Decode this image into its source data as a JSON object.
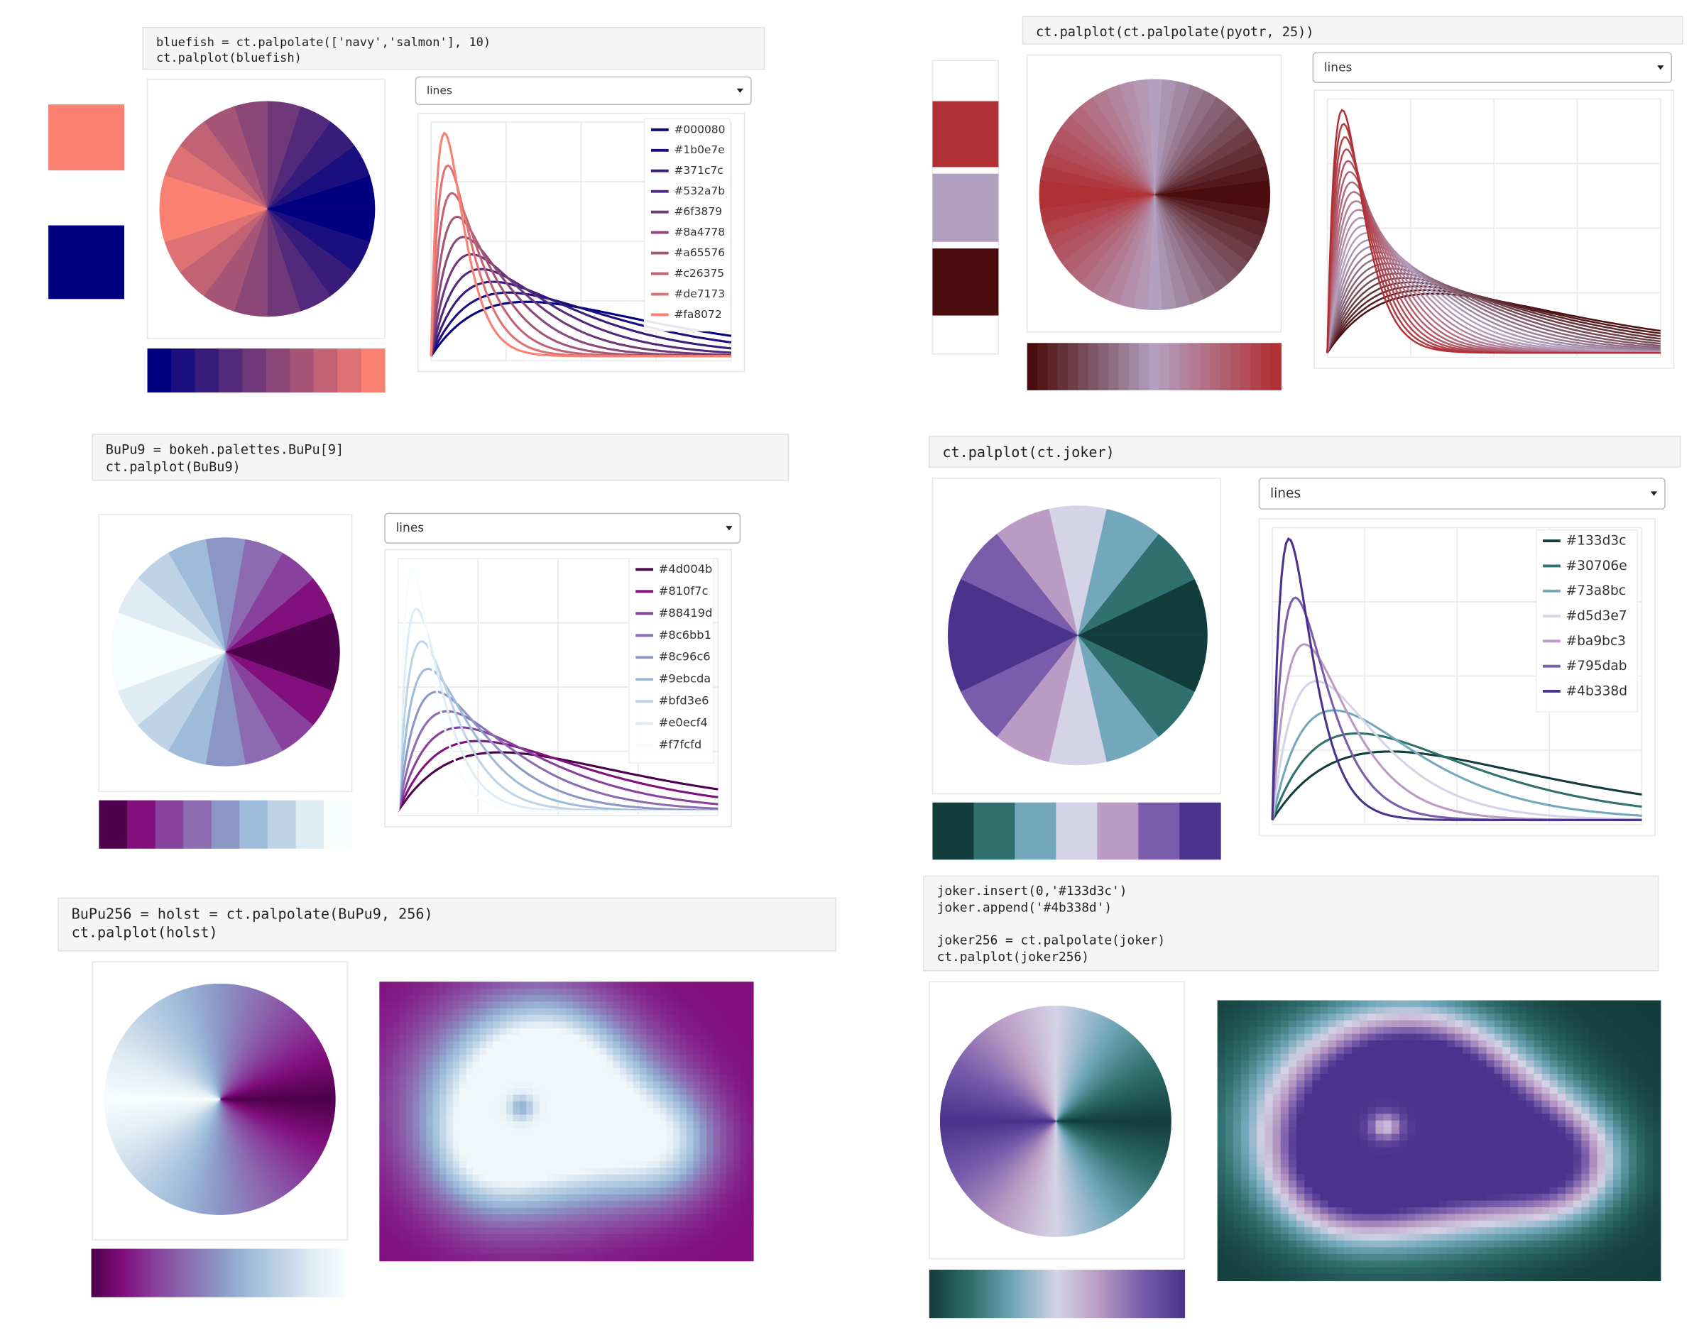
{
  "panels": [
    {
      "code": [
        [
          "bluefish = ct.palpolate(['navy','salmon'], 10)",
          "ct.palplot(bluefish)"
        ]
      ],
      "dropdown": "lines",
      "swatches": [
        "#fa8072",
        "#000080"
      ],
      "legend": [
        "#000080",
        "#1b0e7e",
        "#371c7c",
        "#532a7b",
        "#6f3879",
        "#8a4778",
        "#a65576",
        "#c26375",
        "#de7173",
        "#fa8072"
      ]
    },
    {
      "code": [
        [
          "ct.palplot(ct.palpolate(pyotr, 25))"
        ]
      ],
      "dropdown": "lines",
      "swatches": [
        "#b03035",
        "#b3a0c0",
        "#4a0c0c"
      ]
    },
    {
      "code": [
        [
          "BuPu9 = bokeh.palettes.BuPu[9]",
          "ct.palplot(BuBu9)"
        ]
      ],
      "dropdown": "lines",
      "legend": [
        "#4d004b",
        "#810f7c",
        "#88419d",
        "#8c6bb1",
        "#8c96c6",
        "#9ebcda",
        "#bfd3e6",
        "#e0ecf4",
        "#f7fcfd"
      ]
    },
    {
      "code": [
        [
          "ct.palplot(ct.joker)"
        ]
      ],
      "dropdown": "lines",
      "legend": [
        "#133d3c",
        "#30706e",
        "#73a8bc",
        "#d5d3e7",
        "#ba9bc3",
        "#795dab",
        "#4b338d"
      ]
    },
    {
      "code": [
        [
          "BuPu256 = holst = ct.palpolate(BuPu9, 256)",
          "ct.palplot(holst)"
        ]
      ]
    },
    {
      "code": [
        [
          "joker.insert(0,'#133d3c')",
          "joker.append('#4b338d')"
        ],
        [
          "joker256 = ct.palpolate(joker)",
          "ct.palplot(joker256)"
        ]
      ]
    }
  ]
}
